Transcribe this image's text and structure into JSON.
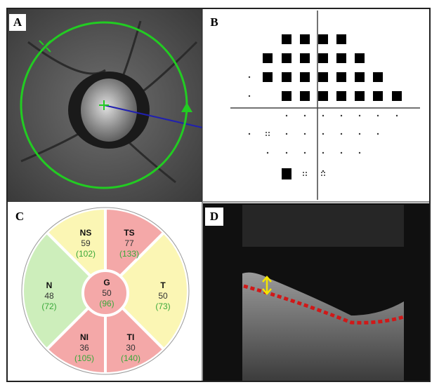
{
  "panels": {
    "a": "A",
    "b": "B",
    "c": "C",
    "d": "D"
  },
  "sectors": [
    {
      "name": "NS",
      "value": 59,
      "normal": "(102)",
      "color": "#fbf6b4"
    },
    {
      "name": "TS",
      "value": 77,
      "normal": "(133)",
      "color": "#f4a8a8"
    },
    {
      "name": "N",
      "value": 48,
      "normal": "(72)",
      "color": "#cdeebb"
    },
    {
      "name": "G",
      "value": 50,
      "normal": "(96)",
      "color": "#f4a8a8"
    },
    {
      "name": "T",
      "value": 50,
      "normal": "(73)",
      "color": "#fbf6b4"
    },
    {
      "name": "NI",
      "value": 36,
      "normal": "(105)",
      "color": "#f4a8a8"
    },
    {
      "name": "TI",
      "value": 30,
      "normal": "(140)",
      "color": "#f4a8a8"
    }
  ]
}
